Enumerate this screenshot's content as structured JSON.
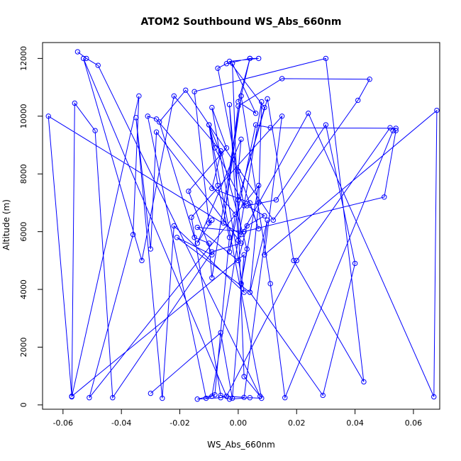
{
  "chart_data": {
    "type": "line",
    "title": "ATOM2 Southbound WS_Abs_660nm",
    "xlabel": "WS_Abs_660nm",
    "ylabel": "Altitude (m)",
    "xlim": [
      -0.067,
      0.069
    ],
    "ylim": [
      -150,
      12550
    ],
    "xticks": [
      -0.06,
      -0.04,
      -0.02,
      0.0,
      0.02,
      0.04,
      0.06
    ],
    "xtick_labels": [
      "-0.06",
      "-0.04",
      "-0.02",
      "0.00",
      "0.02",
      "0.04",
      "0.06"
    ],
    "yticks": [
      0,
      2000,
      4000,
      6000,
      8000,
      10000,
      12000
    ],
    "ytick_labels": [
      "0",
      "2000",
      "4000",
      "6000",
      "8000",
      "10000",
      "12000"
    ],
    "grid": false,
    "series": [
      {
        "color": "#0000ff",
        "marker": "open-circle",
        "x": [
          -0.055,
          -0.052,
          -0.048,
          0.0075,
          0.002,
          -0.002,
          0.006,
          0.0,
          0.004,
          -0.004,
          -0.007,
          0.002,
          -0.008,
          -0.01,
          -0.006,
          -0.009,
          0.004,
          0.007,
          0.0,
          0.001,
          -0.014,
          -0.009,
          -0.01,
          -0.015,
          0.03,
          0.043,
          0.019,
          0.01,
          0.0,
          0.009,
          -0.003,
          0.007,
          0.004,
          0.001,
          -0.005,
          0.0,
          0.015,
          0.045,
          0.041,
          0.012,
          -0.018,
          -0.027,
          -0.015,
          -0.01,
          -0.009,
          0.001,
          0.011,
          0.016,
          0.053,
          0.054,
          0.011,
          0.006,
          -0.003,
          -0.001,
          -0.028,
          -0.031,
          -0.011,
          -0.009,
          0.008,
          0.007,
          0.004,
          0.029,
          0.04,
          0.03,
          0.013,
          0.003,
          0.009,
          0.003,
          0.0,
          -0.014,
          0.002,
          0.05,
          0.054,
          0.052,
          0.02,
          -0.004,
          0.002,
          0.01,
          0.004,
          -0.021,
          -0.009,
          -0.017,
          -0.004,
          -0.009,
          0.002,
          -0.022,
          -0.026,
          -0.035,
          -0.03,
          -0.028,
          0.001,
          -0.009,
          -0.043,
          -0.049,
          -0.056,
          -0.057,
          -0.034,
          -0.036,
          -0.051,
          0.007,
          0.001,
          0.003,
          -0.006,
          -0.022,
          -0.033,
          -0.053,
          -0.004,
          -0.006,
          -0.014,
          -0.008,
          -0.003,
          -0.007,
          -0.01,
          0.008,
          0.004,
          -0.003,
          -0.006,
          -0.016,
          0.015,
          0.009,
          0.068,
          0.067,
          0.024,
          0.0,
          -0.003,
          0.001,
          -0.065,
          -0.057,
          0.002,
          -0.002,
          -0.006,
          -0.03
        ],
        "y": [
          12230,
          12000,
          11760,
          300,
          980,
          11830,
          10100,
          10500,
          12000,
          11820,
          11660,
          6900,
          8900,
          9700,
          8700,
          7500,
          7000,
          6100,
          8100,
          9200,
          5600,
          6400,
          6300,
          10850,
          12000,
          800,
          5000,
          10600,
          7100,
          10300,
          11900,
          12000,
          12000,
          10700,
          6300,
          10350,
          11300,
          11280,
          10550,
          6400,
          10900,
          9800,
          5800,
          5600,
          4400,
          10700,
          4200,
          250,
          9500,
          9580,
          9600,
          9700,
          5300,
          6600,
          9900,
          10000,
          230,
          300,
          10500,
          7000,
          3900,
          330,
          4900,
          9700,
          7100,
          6900,
          6550,
          6200,
          5000,
          6150,
          6000,
          7200,
          9500,
          9600,
          5000,
          300,
          260,
          6400,
          3900,
          5800,
          5200,
          7400,
          8900,
          10300,
          3900,
          6200,
          230,
          9950,
          5400,
          9450,
          5600,
          5300,
          250,
          9500,
          10450,
          280,
          10700,
          5900,
          250,
          7600,
          4200,
          5400,
          8800,
          10700,
          5000,
          12000,
          300,
          250,
          200,
          350,
          5800,
          7600,
          9700,
          230,
          250,
          200,
          330,
          6500,
          10000,
          5200,
          10200,
          280,
          10100,
          5700,
          10400,
          5900,
          10000,
          300,
          5200,
          230,
          2500,
          400
        ]
      }
    ]
  }
}
